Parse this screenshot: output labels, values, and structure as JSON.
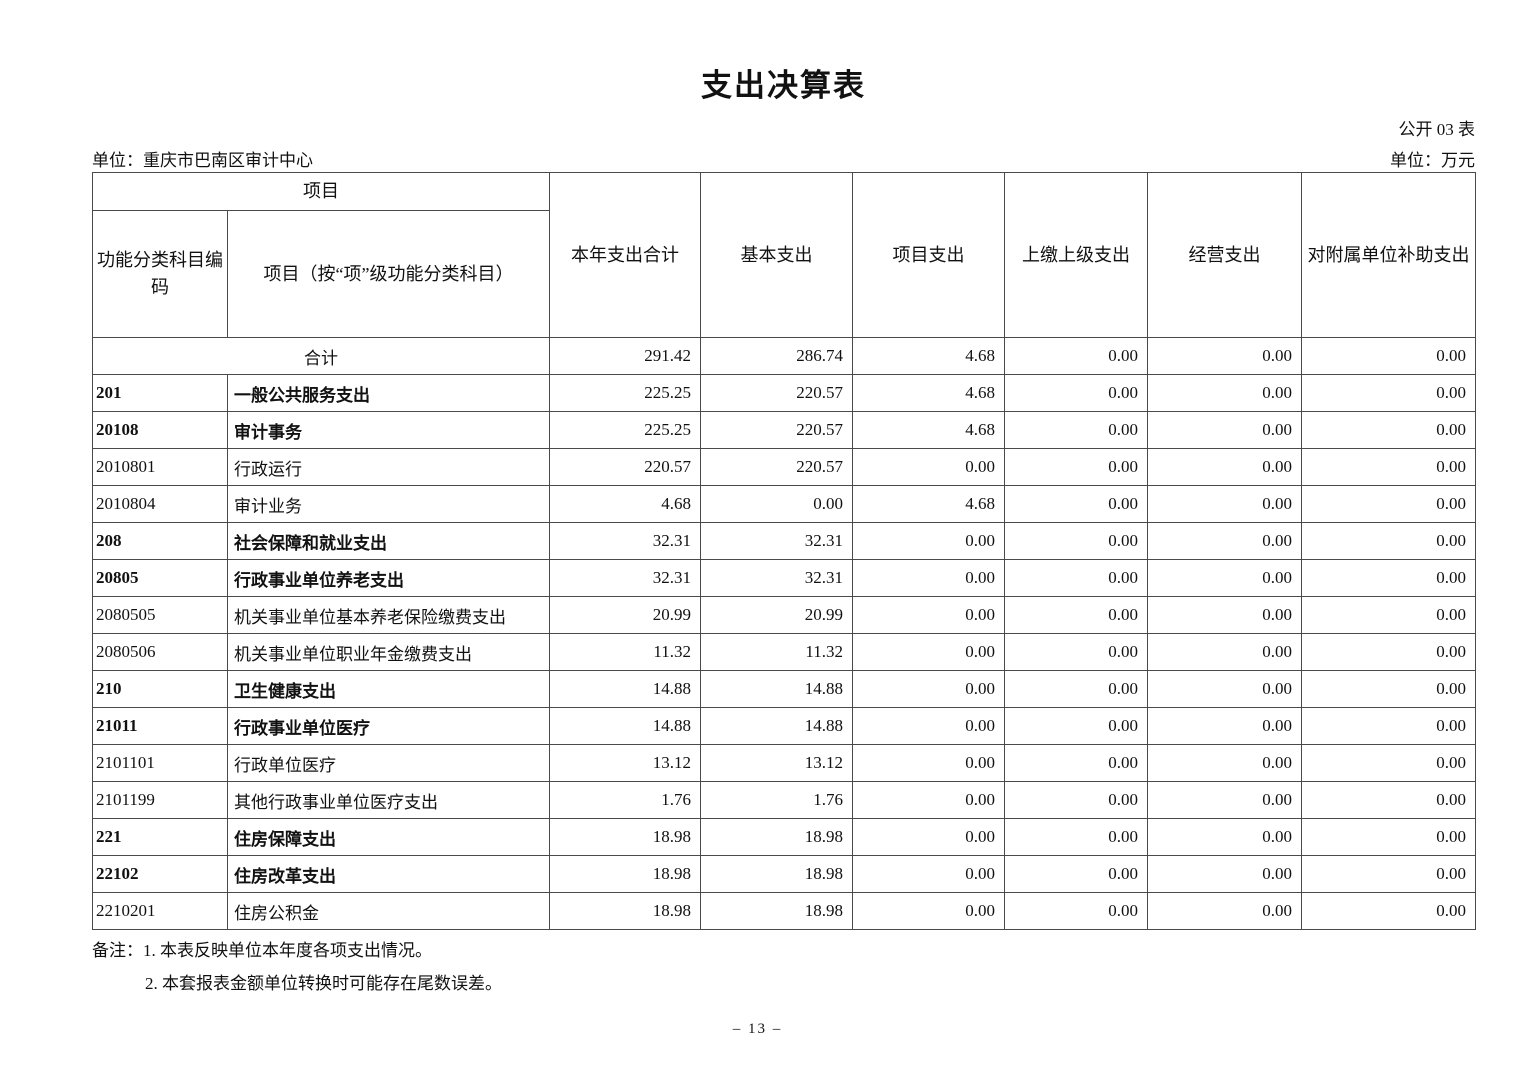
{
  "page": {
    "title": "支出决算表",
    "public_table_label": "公开 03 表",
    "unit_name_label": "单位：重庆市巴南区审计中心",
    "unit_currency_label": "单位：万元",
    "page_number": "– 13 –"
  },
  "table": {
    "header": {
      "project_group": "项目",
      "code_label": "功能分类科目编码",
      "item_label": "项目（按“项”级功能分类科目）",
      "columns": [
        "本年支出合计",
        "基本支出",
        "项目支出",
        "上缴上级支出",
        "经营支出",
        "对附属单位补助支出"
      ]
    },
    "rows": [
      {
        "code": "",
        "name": "合计",
        "merged": true,
        "bold": true,
        "values": [
          "291.42",
          "286.74",
          "4.68",
          "0.00",
          "0.00",
          "0.00"
        ]
      },
      {
        "code": "201",
        "name": "一般公共服务支出",
        "merged": false,
        "bold": true,
        "values": [
          "225.25",
          "220.57",
          "4.68",
          "0.00",
          "0.00",
          "0.00"
        ]
      },
      {
        "code": "20108",
        "name": "审计事务",
        "merged": false,
        "bold": true,
        "values": [
          "225.25",
          "220.57",
          "4.68",
          "0.00",
          "0.00",
          "0.00"
        ]
      },
      {
        "code": "2010801",
        "name": "行政运行",
        "merged": false,
        "bold": false,
        "values": [
          "220.57",
          "220.57",
          "0.00",
          "0.00",
          "0.00",
          "0.00"
        ]
      },
      {
        "code": "2010804",
        "name": "审计业务",
        "merged": false,
        "bold": false,
        "values": [
          "4.68",
          "0.00",
          "4.68",
          "0.00",
          "0.00",
          "0.00"
        ]
      },
      {
        "code": "208",
        "name": "社会保障和就业支出",
        "merged": false,
        "bold": true,
        "values": [
          "32.31",
          "32.31",
          "0.00",
          "0.00",
          "0.00",
          "0.00"
        ]
      },
      {
        "code": "20805",
        "name": "行政事业单位养老支出",
        "merged": false,
        "bold": true,
        "values": [
          "32.31",
          "32.31",
          "0.00",
          "0.00",
          "0.00",
          "0.00"
        ]
      },
      {
        "code": "2080505",
        "name": "机关事业单位基本养老保险缴费支出",
        "merged": false,
        "bold": false,
        "values": [
          "20.99",
          "20.99",
          "0.00",
          "0.00",
          "0.00",
          "0.00"
        ]
      },
      {
        "code": "2080506",
        "name": "机关事业单位职业年金缴费支出",
        "merged": false,
        "bold": false,
        "values": [
          "11.32",
          "11.32",
          "0.00",
          "0.00",
          "0.00",
          "0.00"
        ]
      },
      {
        "code": "210",
        "name": "卫生健康支出",
        "merged": false,
        "bold": true,
        "values": [
          "14.88",
          "14.88",
          "0.00",
          "0.00",
          "0.00",
          "0.00"
        ]
      },
      {
        "code": "21011",
        "name": "行政事业单位医疗",
        "merged": false,
        "bold": true,
        "values": [
          "14.88",
          "14.88",
          "0.00",
          "0.00",
          "0.00",
          "0.00"
        ]
      },
      {
        "code": "2101101",
        "name": "行政单位医疗",
        "merged": false,
        "bold": false,
        "values": [
          "13.12",
          "13.12",
          "0.00",
          "0.00",
          "0.00",
          "0.00"
        ]
      },
      {
        "code": "2101199",
        "name": "其他行政事业单位医疗支出",
        "merged": false,
        "bold": false,
        "values": [
          "1.76",
          "1.76",
          "0.00",
          "0.00",
          "0.00",
          "0.00"
        ]
      },
      {
        "code": "221",
        "name": "住房保障支出",
        "merged": false,
        "bold": true,
        "values": [
          "18.98",
          "18.98",
          "0.00",
          "0.00",
          "0.00",
          "0.00"
        ]
      },
      {
        "code": "22102",
        "name": "住房改革支出",
        "merged": false,
        "bold": true,
        "values": [
          "18.98",
          "18.98",
          "0.00",
          "0.00",
          "0.00",
          "0.00"
        ]
      },
      {
        "code": "2210201",
        "name": "住房公积金",
        "merged": false,
        "bold": false,
        "values": [
          "18.98",
          "18.98",
          "0.00",
          "0.00",
          "0.00",
          "0.00"
        ]
      }
    ]
  },
  "notes": {
    "label": "备注：",
    "items": [
      "1. 本表反映单位本年度各项支出情况。",
      "2. 本套报表金额单位转换时可能存在尾数误差。"
    ]
  }
}
